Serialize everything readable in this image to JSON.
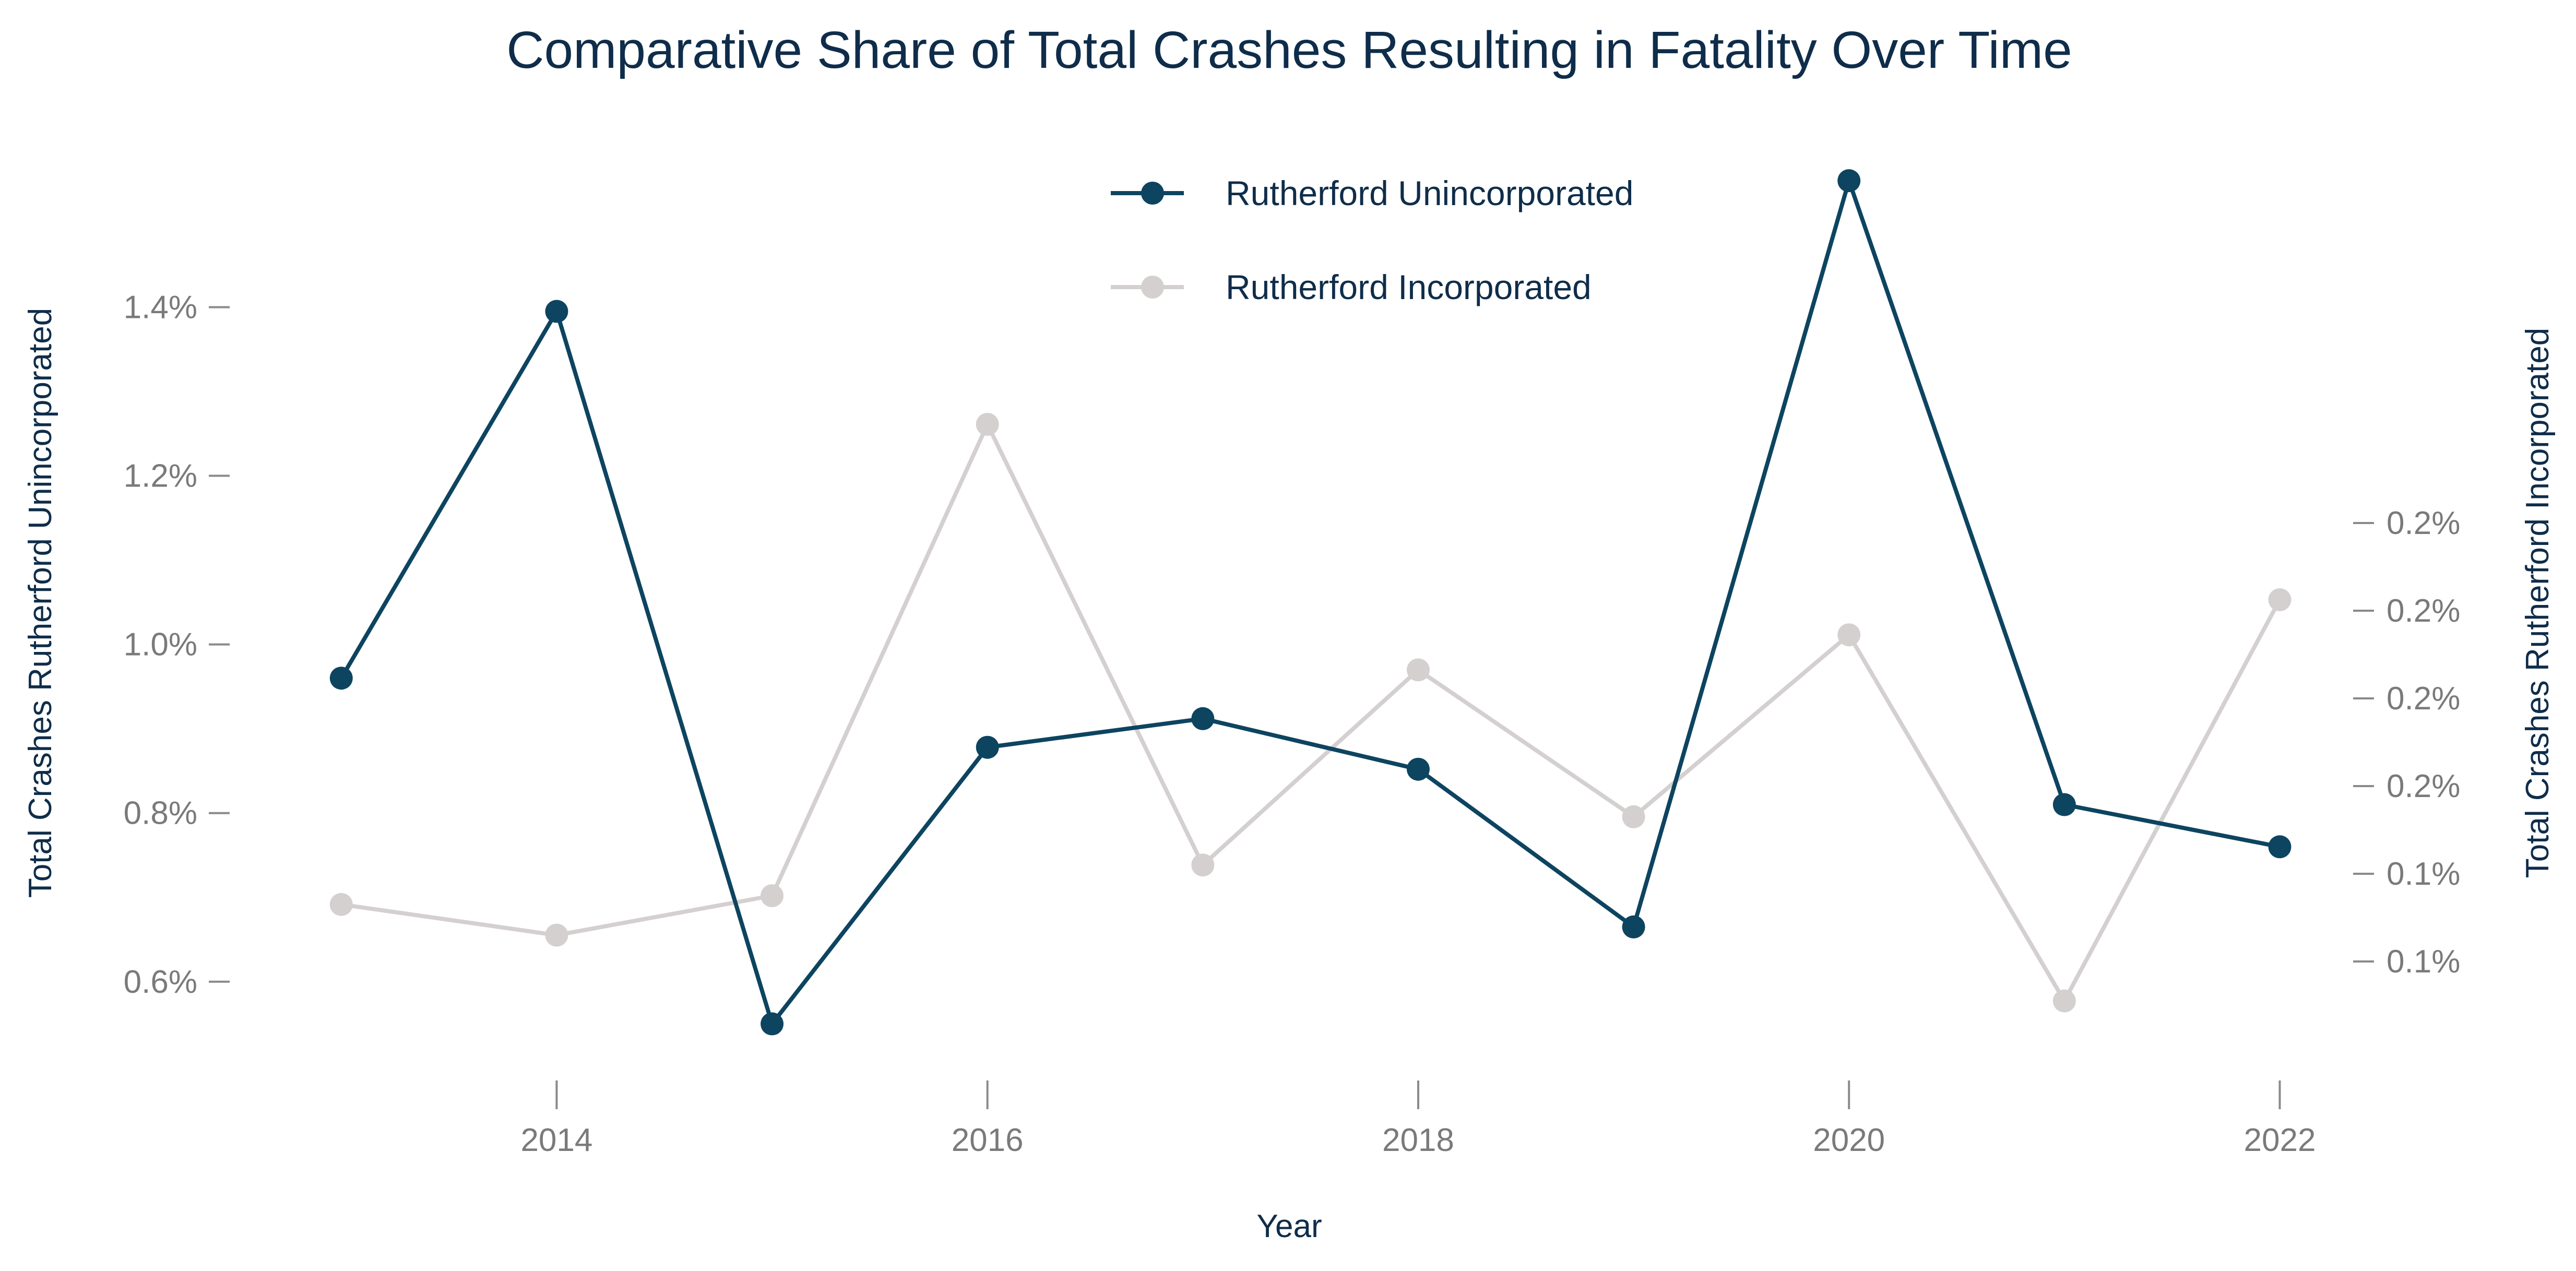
{
  "chart_data": {
    "type": "line",
    "title": "Comparative Share of Total Crashes Resulting in Fatality Over Time",
    "xlabel": "Year",
    "ylabel_left": "Total Crashes Rutherford Unincorporated",
    "ylabel_right": "Total Crashes Rutherford Incorporated",
    "x": [
      2013,
      2014,
      2015,
      2016,
      2017,
      2018,
      2019,
      2020,
      2021,
      2022
    ],
    "x_ticks": [
      2014,
      2016,
      2018,
      2020,
      2022
    ],
    "x_tick_labels": [
      "2014",
      "2016",
      "2018",
      "2020",
      "2022"
    ],
    "xlim": [
      2012.7,
      2022.2
    ],
    "y_left": {
      "lim": [
        0.52,
        1.56
      ],
      "ticks": [
        0.6,
        0.8,
        1.0,
        1.2,
        1.4
      ],
      "tick_labels": [
        "0.6%",
        "0.8%",
        "1.0%",
        "1.2%",
        "1.4%"
      ]
    },
    "y_right": {
      "lim": [
        0.1,
        0.3
      ],
      "ticks": [
        0.12,
        0.14,
        0.16,
        0.18,
        0.2,
        0.22
      ],
      "tick_labels": [
        "0.1%",
        "0.1%",
        "0.2%",
        "0.2%",
        "0.2%",
        "0.2%"
      ]
    },
    "series": [
      {
        "name": "Rutherford Unincorporated",
        "axis": "left",
        "color": "#0d4460",
        "values": [
          0.96,
          1.395,
          0.55,
          0.878,
          0.912,
          0.852,
          0.665,
          1.55,
          0.81,
          0.76
        ]
      },
      {
        "name": "Rutherford Incorporated",
        "axis": "right",
        "color": "#d5d0d0",
        "values": [
          0.133,
          0.126,
          0.135,
          0.2425,
          0.142,
          0.1865,
          0.153,
          0.1945,
          0.111,
          0.2025
        ]
      }
    ],
    "legend": "top-center",
    "grid": false
  }
}
